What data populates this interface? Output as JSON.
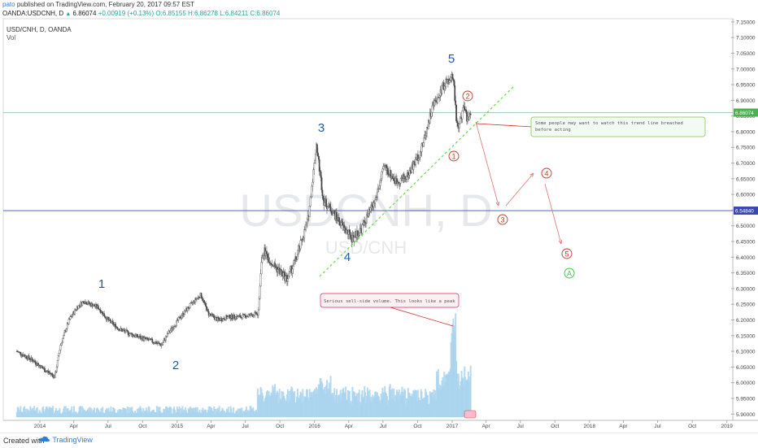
{
  "header": {
    "user": "pato",
    "published": "published on TradingView.com, February 20, 2017 09:57 EST",
    "symbol": "OANDA:USDCNH, D",
    "price": "6.86074",
    "change": "+0.00919 (+0.13%)",
    "open": "O:6.85155",
    "high": "H:6.86278",
    "low": "L:6.84211",
    "close": "C:6.86074"
  },
  "legend": {
    "title": "USD/CNH, D, OANDA",
    "vol": "Vol"
  },
  "watermark": {
    "big": "USDCNH, D",
    "small": "USD/CNH"
  },
  "footer": {
    "created": "Created with",
    "brand": "TradingView"
  },
  "colors": {
    "up": "#26a69a",
    "down": "#ef5350",
    "candle": "#555555",
    "volume": "#a9d3ee",
    "wave": "#1e5aa8",
    "alt": "#c0392b",
    "green": "#2ecc40",
    "trend": "#66dd44"
  },
  "chart_data": {
    "type": "candlestick",
    "symbol": "USD/CNH",
    "interval": "D",
    "ylim": [
      5.88,
      7.16
    ],
    "y_ticks": [
      "7.15000",
      "7.10000",
      "7.05000",
      "7.00000",
      "6.95000",
      "6.90000",
      "6.85000",
      "6.80000",
      "6.75000",
      "6.70000",
      "6.65000",
      "6.60000",
      "6.55000",
      "6.50000",
      "6.45000",
      "6.40000",
      "6.35000",
      "6.30000",
      "6.25000",
      "6.20000",
      "6.15000",
      "6.10000",
      "6.05000",
      "6.00000",
      "5.95000",
      "5.90000"
    ],
    "x_ticks": [
      "2014",
      "Apr",
      "Jul",
      "Oct",
      "2015",
      "Apr",
      "Jul",
      "Oct",
      "2016",
      "Apr",
      "Jul",
      "Oct",
      "2017",
      "Apr",
      "Jul",
      "Oct",
      "2018",
      "Apr",
      "Jul",
      "Oct",
      "2019"
    ],
    "price_labels": [
      {
        "value": 6.86074,
        "text": "6.86074"
      },
      {
        "value": 6.5484,
        "text": "6.54840"
      }
    ],
    "price_path": [
      [
        "2013-11-01",
        6.1
      ],
      [
        "2013-12-15",
        6.07
      ],
      [
        "2014-01-15",
        6.04
      ],
      [
        "2014-02-10",
        6.02
      ],
      [
        "2014-02-25",
        6.12
      ],
      [
        "2014-03-20",
        6.2
      ],
      [
        "2014-04-10",
        6.24
      ],
      [
        "2014-04-28",
        6.26
      ],
      [
        "2014-05-15",
        6.25
      ],
      [
        "2014-06-05",
        6.24
      ],
      [
        "2014-07-01",
        6.2
      ],
      [
        "2014-08-01",
        6.17
      ],
      [
        "2014-09-10",
        6.15
      ],
      [
        "2014-10-05",
        6.14
      ],
      [
        "2014-11-01",
        6.13
      ],
      [
        "2014-11-20",
        6.12
      ],
      [
        "2014-12-10",
        6.16
      ],
      [
        "2015-01-10",
        6.21
      ],
      [
        "2015-02-15",
        6.26
      ],
      [
        "2015-03-05",
        6.28
      ],
      [
        "2015-03-25",
        6.22
      ],
      [
        "2015-04-20",
        6.2
      ],
      [
        "2015-05-20",
        6.21
      ],
      [
        "2015-06-20",
        6.21
      ],
      [
        "2015-08-05",
        6.22
      ],
      [
        "2015-08-12",
        6.38
      ],
      [
        "2015-08-20",
        6.42
      ],
      [
        "2015-09-10",
        6.38
      ],
      [
        "2015-10-05",
        6.35
      ],
      [
        "2015-10-20",
        6.33
      ],
      [
        "2015-11-15",
        6.4
      ],
      [
        "2015-12-15",
        6.52
      ],
      [
        "2016-01-06",
        6.76
      ],
      [
        "2016-01-25",
        6.58
      ],
      [
        "2016-02-15",
        6.55
      ],
      [
        "2016-03-15",
        6.5
      ],
      [
        "2016-04-10",
        6.46
      ],
      [
        "2016-05-05",
        6.49
      ],
      [
        "2016-06-10",
        6.58
      ],
      [
        "2016-07-05",
        6.69
      ],
      [
        "2016-08-05",
        6.64
      ],
      [
        "2016-09-05",
        6.66
      ],
      [
        "2016-10-10",
        6.74
      ],
      [
        "2016-11-10",
        6.88
      ],
      [
        "2016-12-10",
        6.95
      ],
      [
        "2017-01-03",
        6.98
      ],
      [
        "2017-01-15",
        6.8
      ],
      [
        "2017-02-01",
        6.88
      ],
      [
        "2017-02-10",
        6.84
      ],
      [
        "2017-02-20",
        6.86
      ]
    ],
    "volume_note": "tick volume; spike in early January 2017"
  },
  "annotations": {
    "waves": [
      "1",
      "2",
      "3",
      "4",
      "5"
    ],
    "alt_waves": [
      "1",
      "2",
      "3",
      "4",
      "5"
    ],
    "corrective": "A",
    "callout_trend": "Some people may want to watch this trend line breached before acting",
    "callout_volume": "Serious sell-side volume. This looks like a peak"
  }
}
